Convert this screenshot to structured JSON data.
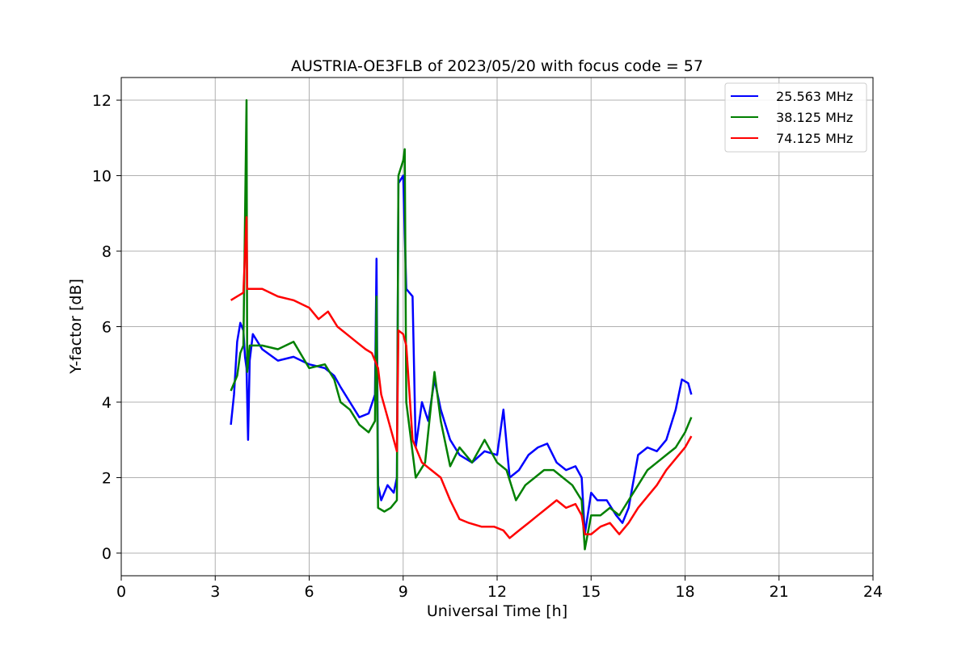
{
  "chart_data": {
    "type": "line",
    "title": "AUSTRIA-OE3FLB of 2023/05/20 with focus code = 57",
    "xlabel": "Universal Time [h]",
    "ylabel": "Y-factor [dB]",
    "xlim": [
      0,
      24
    ],
    "ylim": [
      -0.6,
      12.6
    ],
    "xticks": [
      0,
      3,
      6,
      9,
      12,
      15,
      18,
      21,
      24
    ],
    "yticks": [
      0,
      2,
      4,
      6,
      8,
      10,
      12
    ],
    "grid": true,
    "legend_position": "top-right",
    "series": [
      {
        "name": "25.563 MHz",
        "color": "#0000ff",
        "points": [
          [
            3.5,
            3.4
          ],
          [
            3.6,
            4.2
          ],
          [
            3.7,
            5.6
          ],
          [
            3.8,
            6.1
          ],
          [
            3.9,
            5.9
          ],
          [
            3.95,
            5.2
          ],
          [
            4.0,
            4.9
          ],
          [
            4.05,
            3.0
          ],
          [
            4.1,
            5.1
          ],
          [
            4.2,
            5.8
          ],
          [
            4.5,
            5.4
          ],
          [
            5.0,
            5.1
          ],
          [
            5.5,
            5.2
          ],
          [
            6.0,
            5.0
          ],
          [
            6.5,
            4.9
          ],
          [
            6.8,
            4.7
          ],
          [
            7.0,
            4.4
          ],
          [
            7.3,
            4.0
          ],
          [
            7.6,
            3.6
          ],
          [
            7.9,
            3.7
          ],
          [
            8.1,
            4.2
          ],
          [
            8.15,
            7.8
          ],
          [
            8.2,
            1.8
          ],
          [
            8.3,
            1.4
          ],
          [
            8.5,
            1.8
          ],
          [
            8.7,
            1.6
          ],
          [
            8.8,
            2.0
          ],
          [
            8.85,
            9.8
          ],
          [
            9.0,
            10.0
          ],
          [
            9.1,
            7.0
          ],
          [
            9.3,
            6.8
          ],
          [
            9.4,
            2.8
          ],
          [
            9.6,
            4.0
          ],
          [
            9.8,
            3.5
          ],
          [
            10.0,
            4.6
          ],
          [
            10.2,
            3.8
          ],
          [
            10.5,
            3.0
          ],
          [
            10.8,
            2.6
          ],
          [
            11.2,
            2.4
          ],
          [
            11.6,
            2.7
          ],
          [
            12.0,
            2.6
          ],
          [
            12.2,
            3.8
          ],
          [
            12.4,
            2.0
          ],
          [
            12.7,
            2.2
          ],
          [
            13.0,
            2.6
          ],
          [
            13.3,
            2.8
          ],
          [
            13.6,
            2.9
          ],
          [
            13.9,
            2.4
          ],
          [
            14.2,
            2.2
          ],
          [
            14.5,
            2.3
          ],
          [
            14.7,
            2.0
          ],
          [
            14.8,
            0.5
          ],
          [
            15.0,
            1.6
          ],
          [
            15.2,
            1.4
          ],
          [
            15.5,
            1.4
          ],
          [
            15.8,
            1.0
          ],
          [
            16.0,
            0.8
          ],
          [
            16.2,
            1.2
          ],
          [
            16.5,
            2.6
          ],
          [
            16.8,
            2.8
          ],
          [
            17.1,
            2.7
          ],
          [
            17.4,
            3.0
          ],
          [
            17.7,
            3.8
          ],
          [
            17.9,
            4.6
          ],
          [
            18.1,
            4.5
          ],
          [
            18.2,
            4.2
          ]
        ]
      },
      {
        "name": "38.125 MHz",
        "color": "#008000",
        "points": [
          [
            3.5,
            4.3
          ],
          [
            3.7,
            4.7
          ],
          [
            3.8,
            5.3
          ],
          [
            3.9,
            5.5
          ],
          [
            4.0,
            12.0
          ],
          [
            4.02,
            4.8
          ],
          [
            4.1,
            5.5
          ],
          [
            4.5,
            5.5
          ],
          [
            5.0,
            5.4
          ],
          [
            5.5,
            5.6
          ],
          [
            6.0,
            4.9
          ],
          [
            6.5,
            5.0
          ],
          [
            6.8,
            4.6
          ],
          [
            7.0,
            4.0
          ],
          [
            7.3,
            3.8
          ],
          [
            7.6,
            3.4
          ],
          [
            7.9,
            3.2
          ],
          [
            8.1,
            3.5
          ],
          [
            8.15,
            6.8
          ],
          [
            8.2,
            1.2
          ],
          [
            8.4,
            1.1
          ],
          [
            8.6,
            1.2
          ],
          [
            8.8,
            1.4
          ],
          [
            8.85,
            10.0
          ],
          [
            9.0,
            10.4
          ],
          [
            9.05,
            10.7
          ],
          [
            9.1,
            4.0
          ],
          [
            9.4,
            2.0
          ],
          [
            9.7,
            2.4
          ],
          [
            10.0,
            4.8
          ],
          [
            10.2,
            3.5
          ],
          [
            10.5,
            2.3
          ],
          [
            10.8,
            2.8
          ],
          [
            11.2,
            2.4
          ],
          [
            11.6,
            3.0
          ],
          [
            12.0,
            2.4
          ],
          [
            12.3,
            2.2
          ],
          [
            12.6,
            1.4
          ],
          [
            12.9,
            1.8
          ],
          [
            13.2,
            2.0
          ],
          [
            13.5,
            2.2
          ],
          [
            13.8,
            2.2
          ],
          [
            14.1,
            2.0
          ],
          [
            14.4,
            1.8
          ],
          [
            14.7,
            1.4
          ],
          [
            14.8,
            0.1
          ],
          [
            15.0,
            1.0
          ],
          [
            15.3,
            1.0
          ],
          [
            15.6,
            1.2
          ],
          [
            15.9,
            1.0
          ],
          [
            16.2,
            1.4
          ],
          [
            16.5,
            1.8
          ],
          [
            16.8,
            2.2
          ],
          [
            17.1,
            2.4
          ],
          [
            17.4,
            2.6
          ],
          [
            17.7,
            2.8
          ],
          [
            18.0,
            3.2
          ],
          [
            18.2,
            3.6
          ]
        ]
      },
      {
        "name": "74.125 MHz",
        "color": "#ff0000",
        "points": [
          [
            3.5,
            6.7
          ],
          [
            3.7,
            6.8
          ],
          [
            3.9,
            6.9
          ],
          [
            4.0,
            8.9
          ],
          [
            4.02,
            7.0
          ],
          [
            4.2,
            7.0
          ],
          [
            4.5,
            7.0
          ],
          [
            5.0,
            6.8
          ],
          [
            5.5,
            6.7
          ],
          [
            6.0,
            6.5
          ],
          [
            6.3,
            6.2
          ],
          [
            6.6,
            6.4
          ],
          [
            6.9,
            6.0
          ],
          [
            7.2,
            5.8
          ],
          [
            7.5,
            5.6
          ],
          [
            7.8,
            5.4
          ],
          [
            8.0,
            5.3
          ],
          [
            8.2,
            4.9
          ],
          [
            8.3,
            4.2
          ],
          [
            8.5,
            3.6
          ],
          [
            8.7,
            3.0
          ],
          [
            8.8,
            2.7
          ],
          [
            8.85,
            5.9
          ],
          [
            9.0,
            5.8
          ],
          [
            9.1,
            5.5
          ],
          [
            9.3,
            3.0
          ],
          [
            9.6,
            2.4
          ],
          [
            9.9,
            2.2
          ],
          [
            10.2,
            2.0
          ],
          [
            10.5,
            1.4
          ],
          [
            10.8,
            0.9
          ],
          [
            11.1,
            0.8
          ],
          [
            11.5,
            0.7
          ],
          [
            11.9,
            0.7
          ],
          [
            12.2,
            0.6
          ],
          [
            12.4,
            0.4
          ],
          [
            12.7,
            0.6
          ],
          [
            13.0,
            0.8
          ],
          [
            13.3,
            1.0
          ],
          [
            13.6,
            1.2
          ],
          [
            13.9,
            1.4
          ],
          [
            14.2,
            1.2
          ],
          [
            14.5,
            1.3
          ],
          [
            14.7,
            1.0
          ],
          [
            14.8,
            0.5
          ],
          [
            15.0,
            0.5
          ],
          [
            15.3,
            0.7
          ],
          [
            15.6,
            0.8
          ],
          [
            15.9,
            0.5
          ],
          [
            16.2,
            0.8
          ],
          [
            16.5,
            1.2
          ],
          [
            16.8,
            1.5
          ],
          [
            17.1,
            1.8
          ],
          [
            17.4,
            2.2
          ],
          [
            17.7,
            2.5
          ],
          [
            18.0,
            2.8
          ],
          [
            18.2,
            3.1
          ]
        ]
      }
    ]
  }
}
